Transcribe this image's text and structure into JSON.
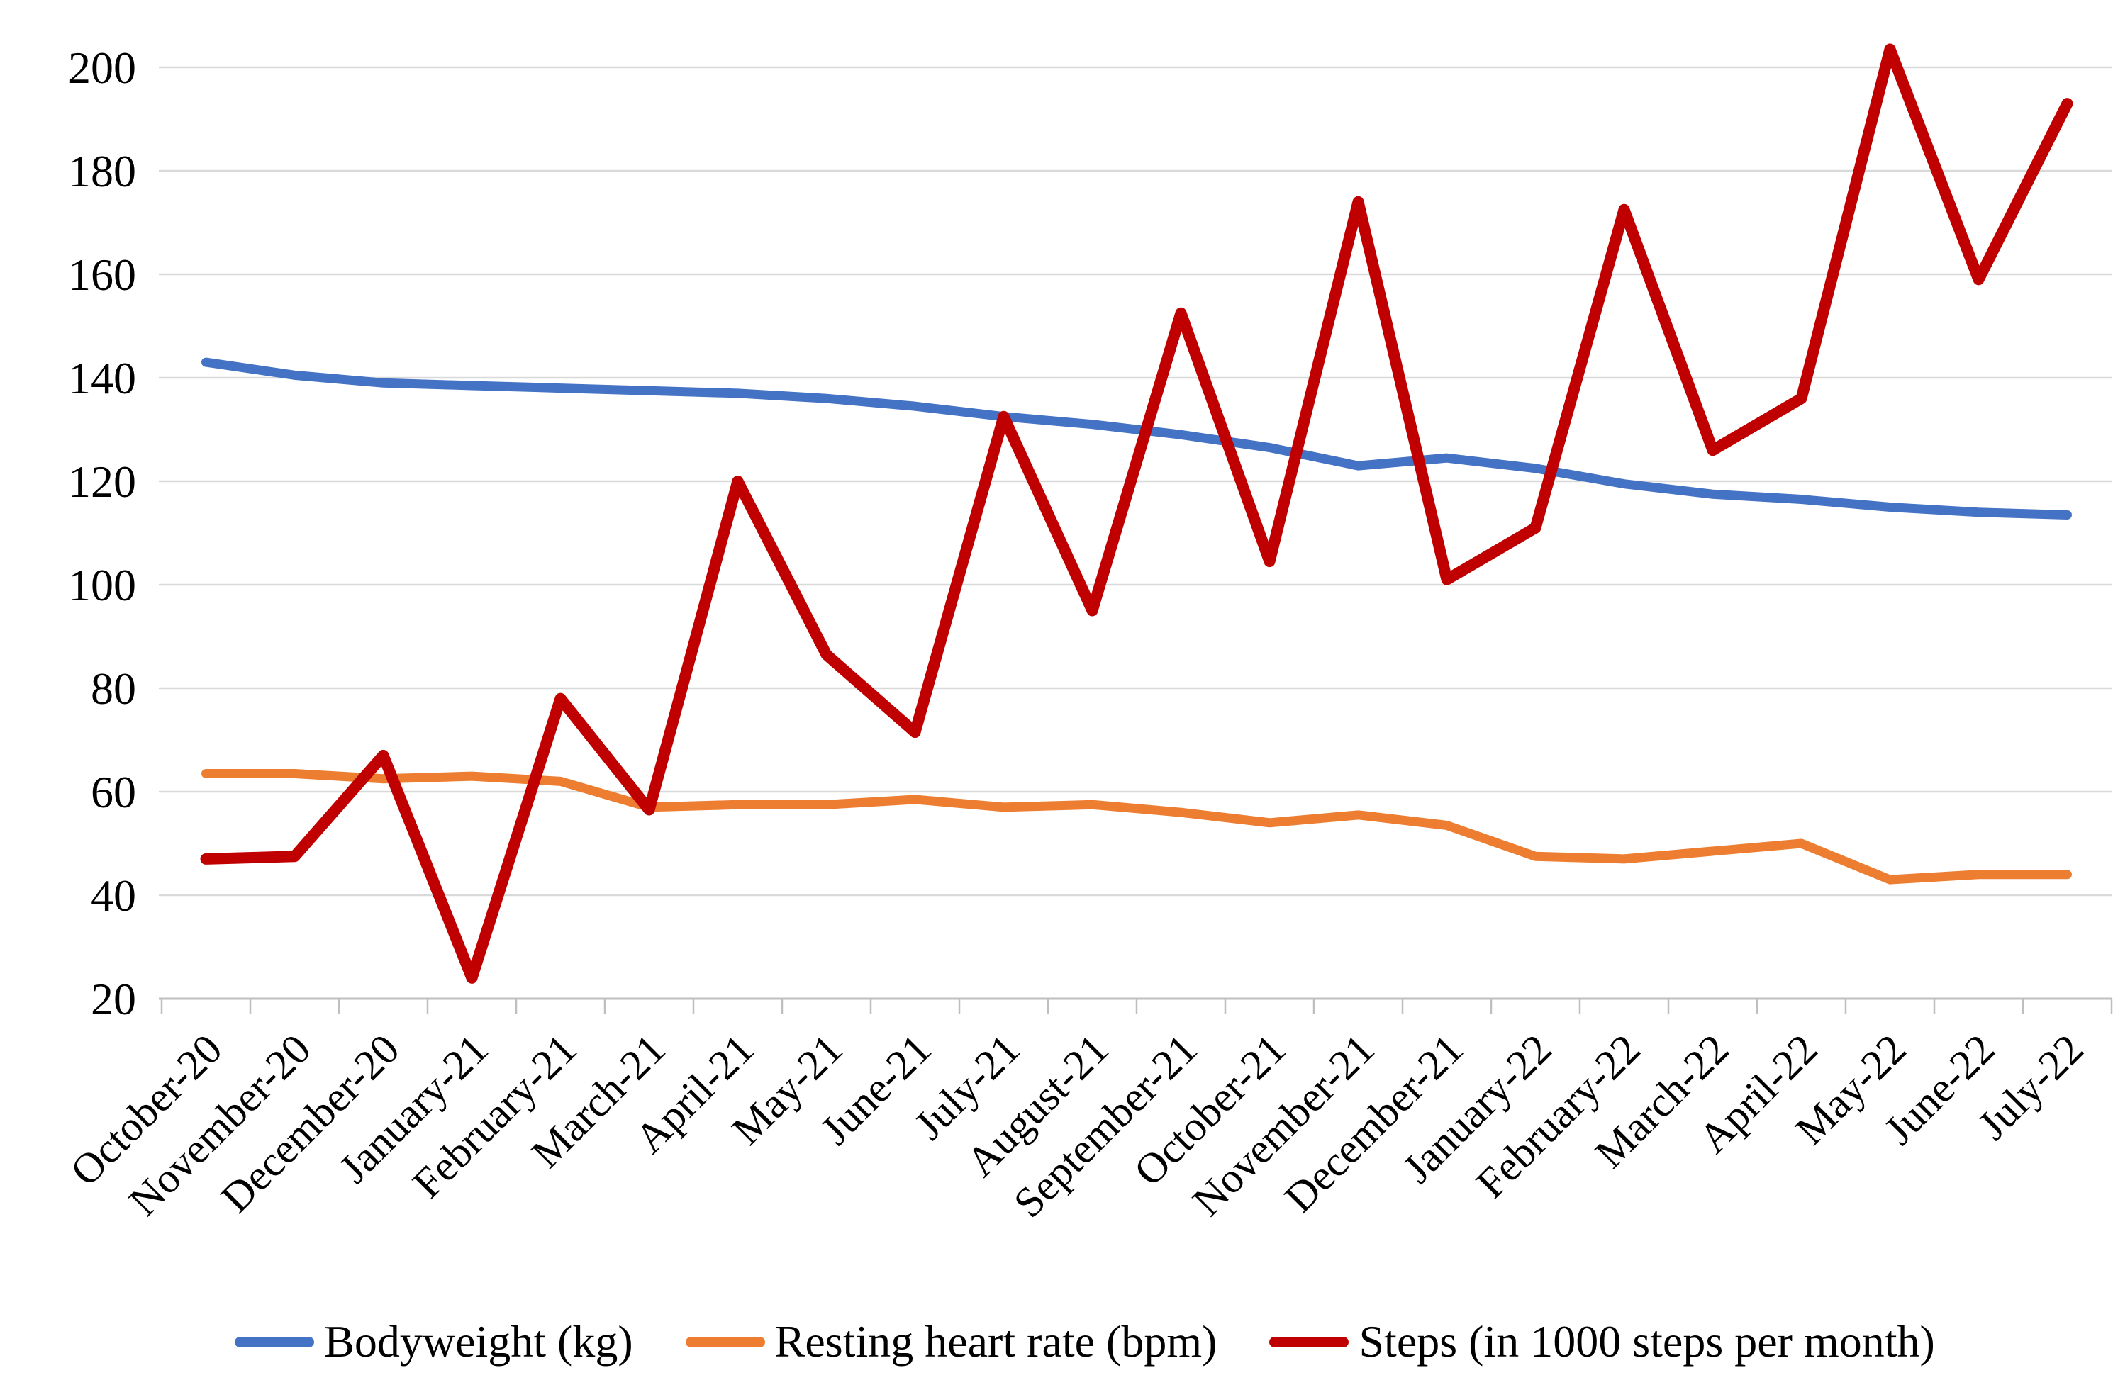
{
  "chart_data": {
    "type": "line",
    "title": "",
    "xlabel": "",
    "ylabel": "",
    "categories": [
      "October-20",
      "November-20",
      "December-20",
      "January-21",
      "February-21",
      "March-21",
      "April-21",
      "May-21",
      "June-21",
      "July-21",
      "August-21",
      "September-21",
      "October-21",
      "November-21",
      "December-21",
      "January-22",
      "February-22",
      "March-22",
      "April-22",
      "May-22",
      "June-22",
      "July-22"
    ],
    "series": [
      {
        "name": "Bodyweight (kg)",
        "color": "#4472C4",
        "line_width": 13,
        "values": [
          143,
          140.5,
          139,
          138.5,
          138,
          137.5,
          137,
          136,
          134.5,
          132.5,
          131,
          129,
          126.5,
          123,
          124.5,
          122.5,
          119.5,
          117.5,
          116.5,
          115,
          114,
          113.5
        ]
      },
      {
        "name": "Resting heart rate (bpm)",
        "color": "#ED7D31",
        "line_width": 13,
        "values": [
          63.5,
          63.5,
          62.5,
          63,
          62,
          57,
          57.5,
          57.5,
          58.5,
          57,
          57.5,
          56,
          54,
          55.5,
          53.5,
          47.5,
          47,
          48.5,
          50,
          43,
          44,
          44
        ]
      },
      {
        "name": "Steps (in 1000 steps per month)",
        "color": "#C00000",
        "line_width": 16,
        "values": [
          47,
          47.5,
          67,
          24,
          78,
          56.5,
          120,
          86.5,
          71.5,
          132.5,
          95,
          152.5,
          104.5,
          174,
          101,
          111,
          172.5,
          126,
          136,
          203.5,
          159,
          193
        ]
      }
    ],
    "ylim": [
      20,
      200
    ],
    "ytick_step": 20,
    "ytick_labels": [
      "20",
      "40",
      "60",
      "80",
      "100",
      "120",
      "140",
      "160",
      "180",
      "200"
    ],
    "grid": true,
    "legend_position": "bottom",
    "colors": {
      "background": "#FFFFFF",
      "grid_line": "#D9D9D9",
      "axis_line": "#BFBFBF",
      "tick_mark": "#BFBFBF",
      "text": "#000000"
    }
  }
}
